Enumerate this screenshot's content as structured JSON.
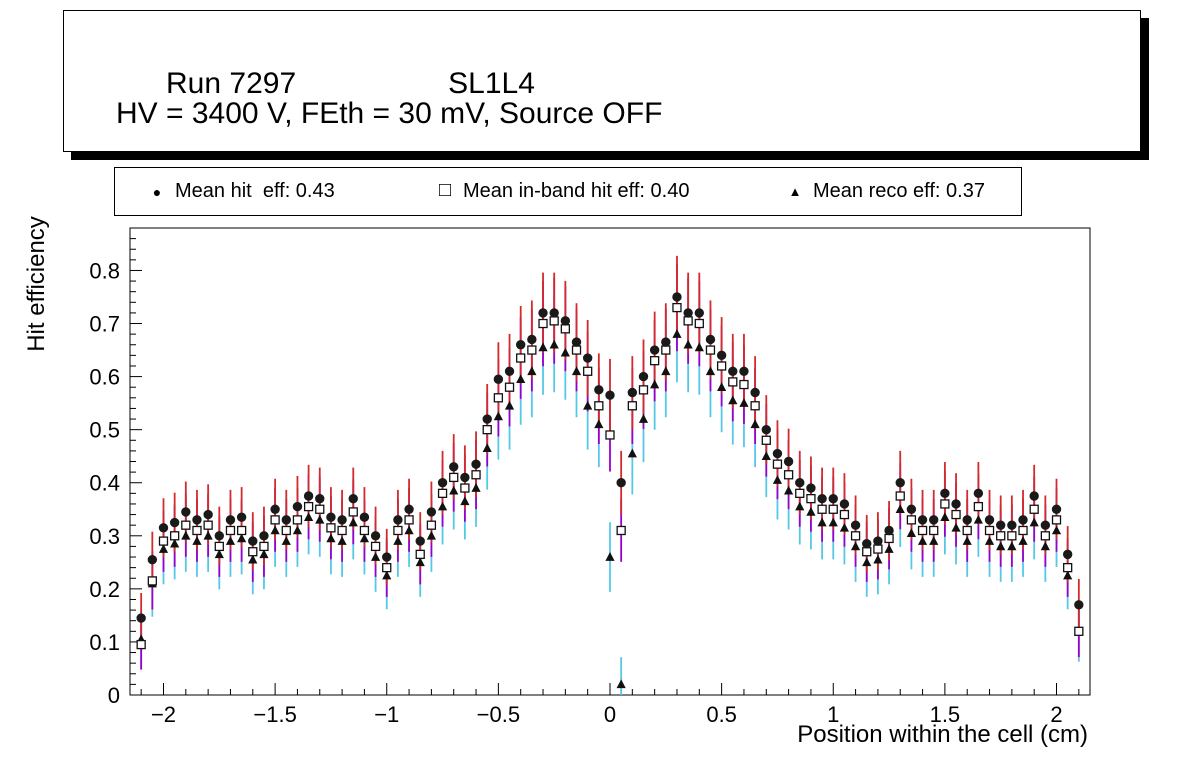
{
  "title_box": {
    "run_label": "Run 7297",
    "chamber_label": "SL1L4",
    "conditions": "HV = 3400 V, FEth = 30 mV, Source OFF"
  },
  "legend": {
    "entries": [
      {
        "marker_icon": "filled-circle-marker-icon",
        "glyph": "●",
        "label": "Mean hit  eff: 0.43"
      },
      {
        "marker_icon": "open-square-marker-icon",
        "glyph": "□",
        "label": "Mean in-band hit eff: 0.40"
      },
      {
        "marker_icon": "filled-triangle-marker-icon",
        "glyph": "▲",
        "label": "Mean reco eff: 0.37"
      }
    ]
  },
  "chart_data": {
    "type": "scatter",
    "title": "",
    "xlabel": "Position within the cell (cm)",
    "ylabel": "Hit efficiency",
    "xlim": [
      -2.15,
      2.15
    ],
    "ylim": [
      0,
      0.88
    ],
    "grid": false,
    "legend_position": "top",
    "x_ticks": [
      -2,
      -1.5,
      -1,
      -0.5,
      0,
      0.5,
      1,
      1.5,
      2
    ],
    "x_tick_labels": [
      "−2",
      "−1.5",
      "−1",
      "−0.5",
      "0",
      "0.5",
      "1",
      "1.5",
      "2"
    ],
    "y_ticks": [
      0,
      0.1,
      0.2,
      0.3,
      0.4,
      0.5,
      0.6,
      0.7,
      0.8
    ],
    "y_tick_labels": [
      "0",
      "0.1",
      "0.2",
      "0.3",
      "0.4",
      "0.5",
      "0.6",
      "0.7",
      "0.8"
    ],
    "x": [
      -2.1,
      -2.05,
      -2.0,
      -1.95,
      -1.9,
      -1.85,
      -1.8,
      -1.75,
      -1.7,
      -1.65,
      -1.6,
      -1.55,
      -1.5,
      -1.45,
      -1.4,
      -1.35,
      -1.3,
      -1.25,
      -1.2,
      -1.15,
      -1.1,
      -1.05,
      -1.0,
      -0.95,
      -0.9,
      -0.85,
      -0.8,
      -0.75,
      -0.7,
      -0.65,
      -0.6,
      -0.55,
      -0.5,
      -0.45,
      -0.4,
      -0.35,
      -0.3,
      -0.25,
      -0.2,
      -0.15,
      -0.1,
      -0.05,
      0.0,
      0.05,
      0.1,
      0.15,
      0.2,
      0.25,
      0.3,
      0.35,
      0.4,
      0.45,
      0.5,
      0.55,
      0.6,
      0.65,
      0.7,
      0.75,
      0.8,
      0.85,
      0.9,
      0.95,
      1.0,
      1.05,
      1.1,
      1.15,
      1.2,
      1.25,
      1.3,
      1.35,
      1.4,
      1.45,
      1.5,
      1.55,
      1.6,
      1.65,
      1.7,
      1.75,
      1.8,
      1.85,
      1.9,
      1.95,
      2.0,
      2.05,
      2.1
    ],
    "series": [
      {
        "name": "Mean reco eff",
        "mean": 0.37,
        "marker": "triangle",
        "marker_color": "#111111",
        "error_color": "#55c8e6",
        "error_base": 0.05,
        "error_scale": 0.06,
        "values": [
          0.105,
          0.21,
          0.275,
          0.285,
          0.3,
          0.29,
          0.3,
          0.265,
          0.29,
          0.295,
          0.255,
          0.265,
          0.31,
          0.29,
          0.31,
          0.335,
          0.33,
          0.295,
          0.29,
          0.325,
          0.295,
          0.26,
          0.225,
          0.29,
          0.31,
          0.25,
          0.3,
          0.355,
          0.385,
          0.365,
          0.39,
          0.465,
          0.525,
          0.545,
          0.595,
          0.61,
          0.655,
          0.66,
          0.645,
          0.61,
          0.545,
          0.51,
          0.26,
          0.02,
          0.455,
          0.52,
          0.585,
          0.61,
          0.68,
          0.66,
          0.655,
          0.61,
          0.58,
          0.555,
          0.55,
          0.51,
          0.45,
          0.405,
          0.385,
          0.355,
          0.345,
          0.325,
          0.325,
          0.315,
          0.28,
          0.25,
          0.255,
          0.275,
          0.35,
          0.305,
          0.29,
          0.29,
          0.335,
          0.315,
          0.29,
          0.33,
          0.29,
          0.28,
          0.28,
          0.29,
          0.325,
          0.28,
          0.31,
          0.225,
          0.12
        ]
      },
      {
        "name": "Mean in-band hit eff",
        "mean": 0.4,
        "marker": "open-square",
        "marker_color": "#111111",
        "error_color": "#9900cc",
        "error_base": 0.042,
        "error_scale": 0.055,
        "values": [
          0.095,
          0.215,
          0.29,
          0.3,
          0.32,
          0.31,
          0.32,
          0.28,
          0.31,
          0.31,
          0.27,
          0.28,
          0.33,
          0.31,
          0.33,
          0.355,
          0.35,
          0.315,
          0.31,
          0.345,
          0.31,
          0.28,
          0.24,
          0.31,
          0.33,
          0.265,
          0.32,
          0.38,
          0.41,
          0.39,
          0.415,
          0.5,
          0.56,
          0.58,
          0.635,
          0.65,
          0.7,
          0.705,
          0.69,
          0.65,
          0.61,
          0.545,
          0.49,
          0.31,
          0.545,
          0.575,
          0.63,
          0.65,
          0.73,
          0.705,
          0.7,
          0.65,
          0.62,
          0.59,
          0.585,
          0.545,
          0.48,
          0.435,
          0.415,
          0.38,
          0.37,
          0.35,
          0.35,
          0.34,
          0.3,
          0.27,
          0.275,
          0.295,
          0.375,
          0.33,
          0.31,
          0.31,
          0.36,
          0.34,
          0.31,
          0.355,
          0.31,
          0.3,
          0.3,
          0.31,
          0.35,
          0.3,
          0.33,
          0.24,
          0.12
        ]
      },
      {
        "name": "Mean hit eff",
        "mean": 0.43,
        "marker": "circle",
        "marker_color": "#1a1a1a",
        "error_color": "#d42a2a",
        "error_base": 0.04,
        "error_scale": 0.05,
        "values": [
          0.145,
          0.255,
          0.315,
          0.325,
          0.345,
          0.33,
          0.34,
          0.3,
          0.33,
          0.335,
          0.29,
          0.3,
          0.35,
          0.33,
          0.355,
          0.375,
          0.37,
          0.335,
          0.33,
          0.37,
          0.335,
          0.3,
          0.26,
          0.33,
          0.35,
          0.29,
          0.345,
          0.4,
          0.43,
          0.41,
          0.435,
          0.52,
          0.595,
          0.61,
          0.66,
          0.67,
          0.72,
          0.72,
          0.705,
          0.665,
          0.635,
          0.575,
          0.565,
          0.4,
          0.57,
          0.6,
          0.65,
          0.665,
          0.75,
          0.72,
          0.72,
          0.67,
          0.64,
          0.61,
          0.61,
          0.57,
          0.5,
          0.455,
          0.44,
          0.4,
          0.39,
          0.37,
          0.37,
          0.36,
          0.32,
          0.285,
          0.29,
          0.31,
          0.4,
          0.35,
          0.33,
          0.33,
          0.38,
          0.36,
          0.33,
          0.38,
          0.33,
          0.32,
          0.32,
          0.33,
          0.375,
          0.32,
          0.35,
          0.265,
          0.17
        ]
      }
    ]
  }
}
